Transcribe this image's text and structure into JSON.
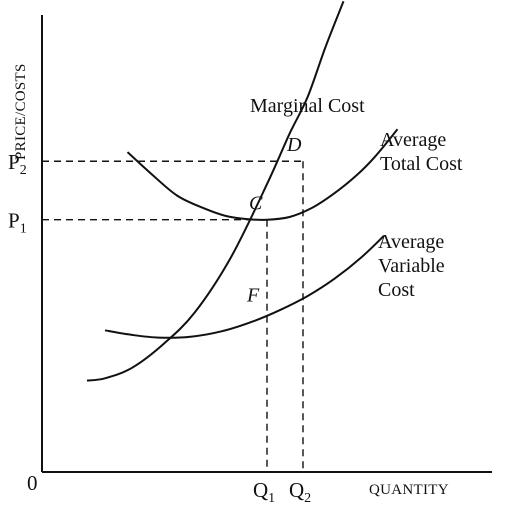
{
  "chart_data": {
    "type": "line",
    "title": "",
    "xlabel": "QUANTITY",
    "ylabel": "PRICE/COSTS",
    "origin_label": "0",
    "xlim": [
      0,
      100
    ],
    "ylim": [
      0,
      100
    ],
    "grid": false,
    "legend": "none",
    "series": [
      {
        "label_lines": [
          "Marginal Cost"
        ],
        "x": [
          10,
          14,
          20,
          27,
          34,
          42,
          50,
          55,
          59,
          63,
          67
        ],
        "y": [
          20,
          20.5,
          22.8,
          28,
          35,
          47,
          63,
          74,
          82,
          93,
          103
        ]
      },
      {
        "label_lines": [
          "Average",
          "Total Cost"
        ],
        "x": [
          19,
          24,
          30,
          36,
          41,
          46,
          50,
          55,
          60,
          65,
          70,
          74,
          79
        ],
        "y": [
          70,
          65.5,
          60.5,
          57.7,
          56,
          55.3,
          55.2,
          55.8,
          57.8,
          61,
          65,
          69,
          75
        ]
      },
      {
        "label_lines": [
          "Average",
          "Variable",
          "Cost"
        ],
        "x": [
          14,
          20,
          26,
          33,
          40,
          47,
          53,
          59,
          65,
          71,
          76
        ],
        "y": [
          31,
          30,
          29.4,
          29.6,
          30.8,
          33,
          35.5,
          38.5,
          42.3,
          47,
          51.7
        ]
      }
    ],
    "points": [
      {
        "label": "C",
        "x": 50,
        "y": 55.2
      },
      {
        "label": "D",
        "x": 58,
        "y": 68
      },
      {
        "label": "F",
        "x": 50,
        "y": 36
      }
    ],
    "price_ticks": [
      {
        "label": "P",
        "sub": "2",
        "y": 68
      },
      {
        "label": "P",
        "sub": "1",
        "y": 55.2
      }
    ],
    "quantity_ticks": [
      {
        "label": "Q",
        "sub": "1",
        "x": 50
      },
      {
        "label": "Q",
        "sub": "2",
        "x": 58
      }
    ]
  }
}
